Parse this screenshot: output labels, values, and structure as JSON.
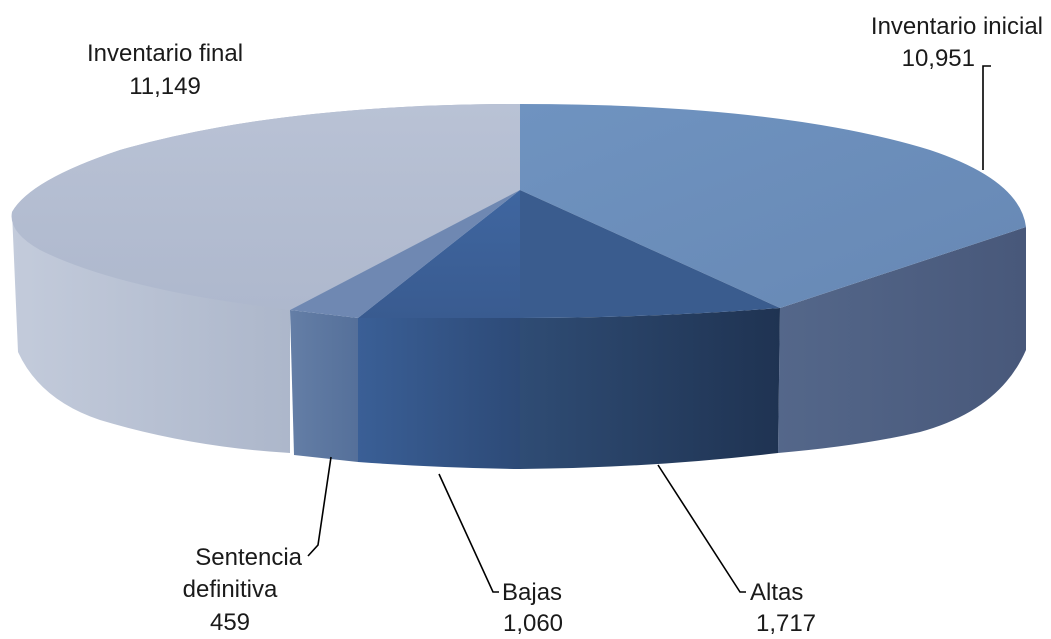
{
  "chart_data": {
    "type": "pie",
    "style": "3d-exploded",
    "categories": [
      "Inventario inicial",
      "Altas",
      "Bajas",
      "Sentencia definitiva",
      "Inventario final"
    ],
    "values": [
      10951,
      1717,
      1060,
      459,
      11149
    ],
    "labels": [
      {
        "name_lines": [
          "Inventario inicial"
        ],
        "value": "10,951"
      },
      {
        "name_lines": [
          "Altas"
        ],
        "value": "1,717"
      },
      {
        "name_lines": [
          "Bajas"
        ],
        "value": "1,060"
      },
      {
        "name_lines": [
          "Sentencia",
          "definitiva"
        ],
        "value": "459"
      },
      {
        "name_lines": [
          "Inventario final"
        ],
        "value": "11,149"
      }
    ],
    "colors": {
      "Inventario inicial": "#6b8fbb",
      "Altas": "#3b5f93",
      "Bajas": "#3b5f93",
      "Sentencia definitiva": "#6f88b2",
      "Inventario final": "#b2bcd1"
    }
  }
}
